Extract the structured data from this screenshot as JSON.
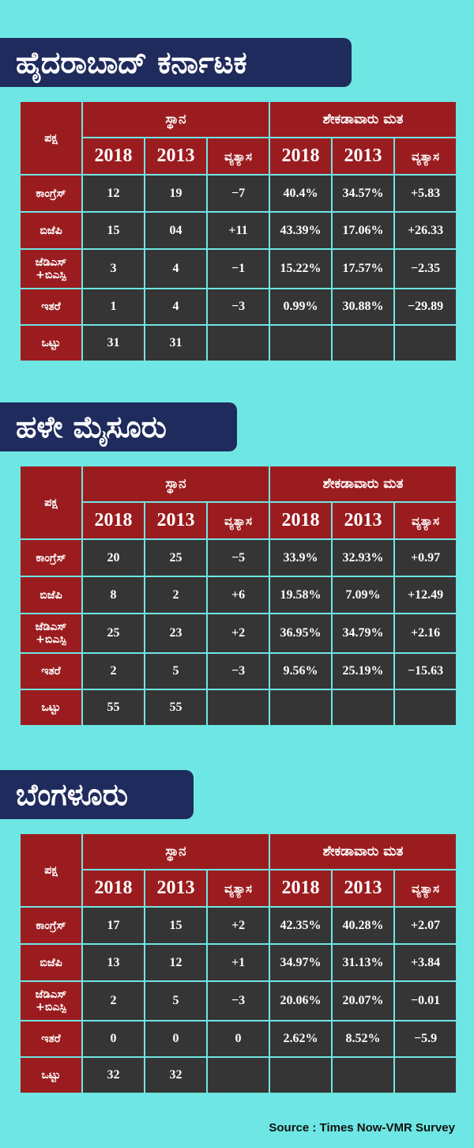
{
  "header_labels": {
    "party": "ಪಕ್ಷ",
    "seats": "ಸ್ಥಾನ",
    "vote_percent": "ಶೇಕಡಾವಾರು ಮತ",
    "year_2018": "2018",
    "year_2013": "2013",
    "difference": "ವ್ಯತ್ಯಾಸ"
  },
  "regions": [
    {
      "title": "ಹೈದರಾಬಾದ್ ಕರ್ನಾಟಕ",
      "rows": [
        {
          "party": "ಕಾಂಗ್ರೆಸ್",
          "s2018": "12",
          "s2013": "19",
          "sdiff": "−7",
          "v2018": "40.4%",
          "v2013": "34.57%",
          "vdiff": "+5.83"
        },
        {
          "party": "ಬಿಜೆಪಿ",
          "s2018": "15",
          "s2013": "04",
          "sdiff": "+11",
          "v2018": "43.39%",
          "v2013": "17.06%",
          "vdiff": "+26.33"
        },
        {
          "party": "ಜೆಡಿಎಸ್ +ಬಿಎಸ್ಪಿ",
          "s2018": "3",
          "s2013": "4",
          "sdiff": "−1",
          "v2018": "15.22%",
          "v2013": "17.57%",
          "vdiff": "−2.35"
        },
        {
          "party": "ಇತರೆ",
          "s2018": "1",
          "s2013": "4",
          "sdiff": "−3",
          "v2018": "0.99%",
          "v2013": "30.88%",
          "vdiff": "−29.89"
        },
        {
          "party": "ಒಟ್ಟು",
          "s2018": "31",
          "s2013": "31",
          "sdiff": "",
          "v2018": "",
          "v2013": "",
          "vdiff": ""
        }
      ]
    },
    {
      "title": "ಹಳೇ ಮೈಸೂರು",
      "rows": [
        {
          "party": "ಕಾಂಗ್ರೆಸ್",
          "s2018": "20",
          "s2013": "25",
          "sdiff": "−5",
          "v2018": "33.9%",
          "v2013": "32.93%",
          "vdiff": "+0.97"
        },
        {
          "party": "ಬಿಜೆಪಿ",
          "s2018": "8",
          "s2013": "2",
          "sdiff": "+6",
          "v2018": "19.58%",
          "v2013": "7.09%",
          "vdiff": "+12.49"
        },
        {
          "party": "ಜೆಡಿಎಸ್ +ಬಿಎಸ್ಪಿ",
          "s2018": "25",
          "s2013": "23",
          "sdiff": "+2",
          "v2018": "36.95%",
          "v2013": "34.79%",
          "vdiff": "+2.16"
        },
        {
          "party": "ಇತರೆ",
          "s2018": "2",
          "s2013": "5",
          "sdiff": "−3",
          "v2018": "9.56%",
          "v2013": "25.19%",
          "vdiff": "−15.63"
        },
        {
          "party": "ಒಟ್ಟು",
          "s2018": "55",
          "s2013": "55",
          "sdiff": "",
          "v2018": "",
          "v2013": "",
          "vdiff": ""
        }
      ]
    },
    {
      "title": "ಬೆಂಗಳೂರು",
      "rows": [
        {
          "party": "ಕಾಂಗ್ರೆಸ್",
          "s2018": "17",
          "s2013": "15",
          "sdiff": "+2",
          "v2018": "42.35%",
          "v2013": "40.28%",
          "vdiff": "+2.07"
        },
        {
          "party": "ಬಿಜೆಪಿ",
          "s2018": "13",
          "s2013": "12",
          "sdiff": "+1",
          "v2018": "34.97%",
          "v2013": "31.13%",
          "vdiff": "+3.84"
        },
        {
          "party": "ಜೆಡಿಎಸ್ +ಬಿಎಸ್ಪಿ",
          "s2018": "2",
          "s2013": "5",
          "sdiff": "−3",
          "v2018": "20.06%",
          "v2013": "20.07%",
          "vdiff": "−0.01"
        },
        {
          "party": "ಇತರೆ",
          "s2018": "0",
          "s2013": "0",
          "sdiff": "0",
          "v2018": "2.62%",
          "v2013": "8.52%",
          "vdiff": "−5.9"
        },
        {
          "party": "ಒಟ್ಟು",
          "s2018": "32",
          "s2013": "32",
          "sdiff": "",
          "v2018": "",
          "v2013": "",
          "vdiff": ""
        }
      ]
    }
  ],
  "source": "Source : Times Now-VMR Survey"
}
